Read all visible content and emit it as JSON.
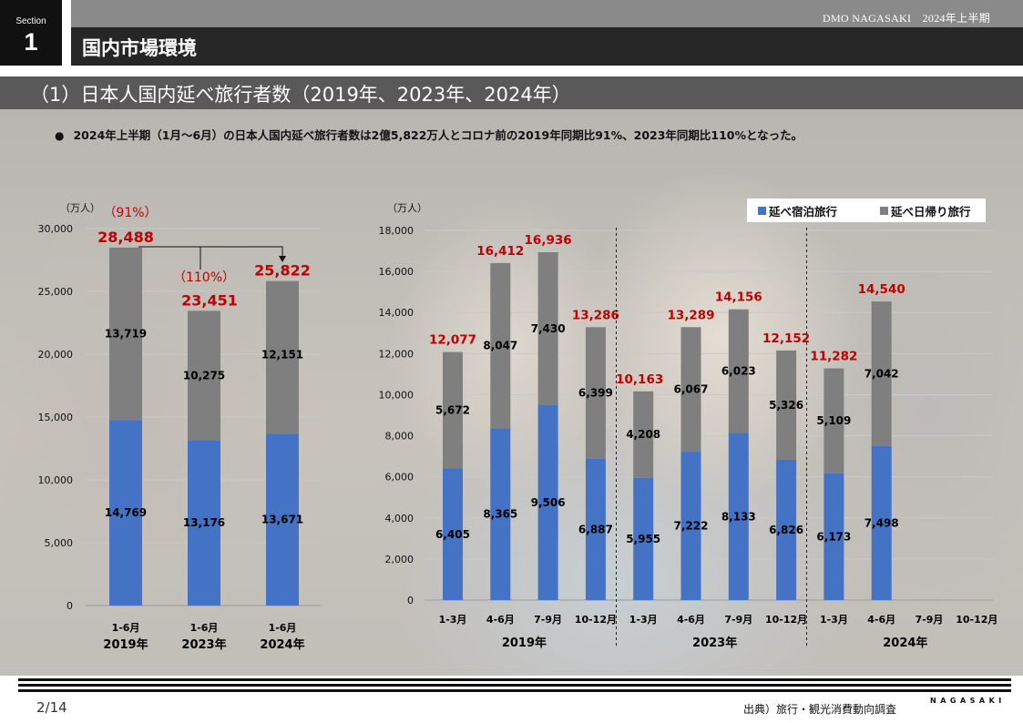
{
  "section": {
    "label": "Section",
    "number": "1"
  },
  "brand": "DMO NAGASAKI　2024年上半期",
  "title": "国内市場環境",
  "subtitle": "（1）日本人国内延べ旅行者数（2019年、2023年、2024年）",
  "bullet": "2024年上半期（1月～6月）の日本人国内延べ旅行者数は2億5,822万人とコロナ前の2019年同期比91%、2023年同期比110%となった。",
  "legend": {
    "stay": "延べ宿泊旅行",
    "day": "延べ日帰り旅行"
  },
  "colors": {
    "stay": "#4472C4",
    "day": "#7F7F7F",
    "total_label": "#C00000"
  },
  "page_number": "2/14",
  "source": "出典）旅行・観光消費動向調査",
  "logo_text": "NAGASAKI",
  "chart_data": [
    {
      "type": "bar",
      "stacked": true,
      "unit_label": "（万人）",
      "ylim": [
        0,
        30000
      ],
      "yticks": [
        0,
        5000,
        10000,
        15000,
        20000,
        25000,
        30000
      ],
      "ytick_labels": [
        "0",
        "5,000",
        "10,000",
        "15,000",
        "20,000",
        "25,000",
        "30,000"
      ],
      "categories": [
        "1-6月",
        "1-6月",
        "1-6月"
      ],
      "groups": [
        "2019年",
        "2023年",
        "2024年"
      ],
      "series": [
        {
          "name": "延べ宿泊旅行",
          "values": [
            14769,
            13176,
            13671
          ],
          "labels": [
            "14,769",
            "13,176",
            "13,671"
          ]
        },
        {
          "name": "延べ日帰り旅行",
          "values": [
            13719,
            10275,
            12151
          ],
          "labels": [
            "13,719",
            "10,275",
            "12,151"
          ]
        }
      ],
      "totals": [
        "28,488",
        "23,451",
        "25,822"
      ],
      "ratios": [
        "（91%）",
        "（110%）"
      ]
    },
    {
      "type": "bar",
      "stacked": true,
      "unit_label": "（万人）",
      "ylim": [
        0,
        18000
      ],
      "yticks": [
        0,
        2000,
        4000,
        6000,
        8000,
        10000,
        12000,
        14000,
        16000,
        18000
      ],
      "ytick_labels": [
        "0",
        "2,000",
        "4,000",
        "6,000",
        "8,000",
        "10,000",
        "12,000",
        "14,000",
        "16,000",
        "18,000"
      ],
      "categories": [
        "1-3月",
        "4-6月",
        "7-9月",
        "10-12月",
        "1-3月",
        "4-6月",
        "7-9月",
        "10-12月",
        "1-3月",
        "4-6月",
        "7-9月",
        "10-12月"
      ],
      "groups": [
        "2019年",
        "2023年",
        "2024年"
      ],
      "series": [
        {
          "name": "延べ宿泊旅行",
          "values": [
            6405,
            8365,
            9506,
            6887,
            5955,
            7222,
            8133,
            6826,
            6173,
            7498,
            null,
            null
          ],
          "labels": [
            "6,405",
            "8,365",
            "9,506",
            "6,887",
            "5,955",
            "7,222",
            "8,133",
            "6,826",
            "6,173",
            "7,498",
            "",
            ""
          ]
        },
        {
          "name": "延べ日帰り旅行",
          "values": [
            5672,
            8047,
            7430,
            6399,
            4208,
            6067,
            6023,
            5326,
            5109,
            7042,
            null,
            null
          ],
          "labels": [
            "5,672",
            "8,047",
            "7,430",
            "6,399",
            "4,208",
            "6,067",
            "6,023",
            "5,326",
            "5,109",
            "7,042",
            "",
            ""
          ]
        }
      ],
      "totals": [
        "12,077",
        "16,412",
        "16,936",
        "13,286",
        "10,163",
        "13,289",
        "14,156",
        "12,152",
        "11,282",
        "14,540",
        "",
        ""
      ]
    }
  ]
}
